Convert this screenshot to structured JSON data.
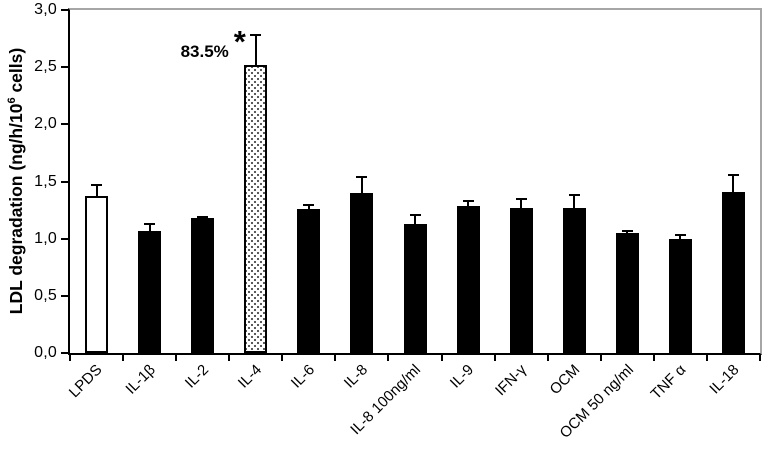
{
  "figure": {
    "background": "#ffffff",
    "plot_frame_color": "#a6a6a6",
    "axis_color": "#000000",
    "solid_bar_color": "#000000",
    "open_bar_color": "#ffffff"
  },
  "chart_data": {
    "type": "bar",
    "title": "",
    "xlabel": "",
    "ylabel": "LDL degradation (ng/h/10⁶ cells)",
    "ylabel_parts": {
      "prefix": "LDL degradation (ng/h/10",
      "sup": "6",
      "suffix": " cells)"
    },
    "ylim": [
      0,
      3
    ],
    "grid": false,
    "legend": "none",
    "ytick_values": [
      0,
      0.5,
      1,
      1.5,
      2,
      2.5,
      3
    ],
    "ytick_labels": [
      "0,0",
      "0,5",
      "1,0",
      "1,5",
      "2,0",
      "2,5",
      "3,0"
    ],
    "categories": [
      "LPDS",
      "IL-1β",
      "IL-2",
      "IL-4",
      "IL-6",
      "IL-8",
      "IL-8 100ng/ml",
      "IL-9",
      "IFN-γ",
      "OCM",
      "OCM 50 ng/ml",
      "TNF α",
      "IL-18"
    ],
    "values": [
      1.37,
      1.07,
      1.18,
      2.52,
      1.26,
      1.4,
      1.13,
      1.29,
      1.27,
      1.27,
      1.05,
      1.0,
      1.41
    ],
    "errors": [
      0.11,
      0.07,
      0.02,
      0.27,
      0.04,
      0.15,
      0.09,
      0.05,
      0.09,
      0.12,
      0.03,
      0.04,
      0.16
    ],
    "bar_styles": [
      "open",
      "solid",
      "solid",
      "stipple",
      "solid",
      "solid",
      "solid",
      "solid",
      "solid",
      "solid",
      "solid",
      "solid",
      "solid"
    ],
    "annotation": {
      "label": "83.5%",
      "symbol": "*",
      "category": "IL-4",
      "category_index": 3
    }
  }
}
